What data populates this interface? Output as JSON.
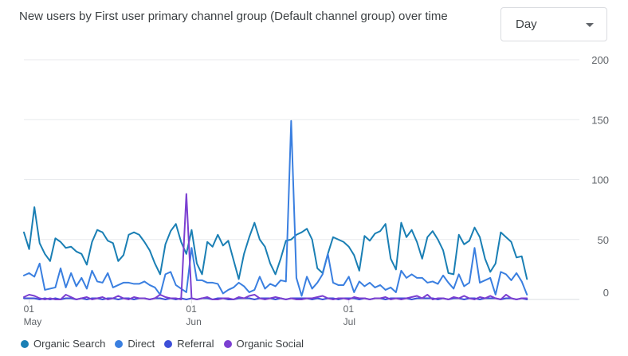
{
  "header": {
    "title": "New users by First user primary channel group (Default channel group) over time"
  },
  "granularity": {
    "selected": "Day"
  },
  "icons": {
    "dropdown_caret": "caret-down-icon"
  },
  "chart_data": {
    "type": "line",
    "title": "New users by First user primary channel group (Default channel group) over time",
    "ylim": [
      0,
      200
    ],
    "yticks": [
      0,
      50,
      100,
      150,
      200
    ],
    "xlim": [
      0,
      106
    ],
    "x_tick_labels": [
      {
        "x": 1,
        "day": "01",
        "month": "May"
      },
      {
        "x": 32,
        "day": "01",
        "month": "Jun"
      },
      {
        "x": 62,
        "day": "01",
        "month": "Jul"
      }
    ],
    "grid": true,
    "legend": "bottom-left",
    "series": [
      {
        "name": "Organic Search",
        "color": "#1a7fb4",
        "values": [
          56,
          42,
          77,
          47,
          38,
          32,
          51,
          48,
          43,
          44,
          40,
          38,
          29,
          48,
          58,
          56,
          49,
          47,
          32,
          37,
          54,
          56,
          54,
          48,
          41,
          30,
          21,
          46,
          57,
          63,
          48,
          38,
          58,
          30,
          21,
          48,
          44,
          54,
          45,
          49,
          33,
          17,
          38,
          52,
          64,
          50,
          44,
          30,
          21,
          34,
          49,
          50,
          54,
          56,
          59,
          50,
          26,
          22,
          38,
          52,
          50,
          48,
          44,
          37,
          24,
          53,
          49,
          55,
          57,
          63,
          34,
          25,
          64,
          52,
          58,
          48,
          34,
          52,
          57,
          50,
          41,
          22,
          21,
          54,
          46,
          49,
          60,
          52,
          34,
          23,
          30,
          56,
          52,
          48,
          35,
          36,
          17
        ]
      },
      {
        "name": "Direct",
        "color": "#3a7fe0",
        "values": [
          20,
          22,
          19,
          30,
          8,
          9,
          10,
          26,
          10,
          22,
          11,
          18,
          9,
          24,
          15,
          14,
          22,
          10,
          12,
          14,
          14,
          13,
          13,
          15,
          12,
          10,
          4,
          21,
          23,
          12,
          9,
          6,
          43,
          16,
          16,
          14,
          14,
          13,
          5,
          8,
          10,
          14,
          11,
          6,
          8,
          19,
          9,
          13,
          11,
          16,
          15,
          149,
          18,
          3,
          19,
          9,
          14,
          21,
          38,
          14,
          12,
          12,
          19,
          6,
          15,
          11,
          14,
          10,
          12,
          8,
          10,
          6,
          24,
          18,
          21,
          18,
          18,
          14,
          15,
          13,
          20,
          14,
          9,
          21,
          11,
          14,
          43,
          14,
          16,
          18,
          4,
          23,
          21,
          16,
          22,
          15,
          4
        ]
      },
      {
        "name": "Referral",
        "color": "#3d4fd8",
        "values": [
          1,
          1,
          1,
          0,
          1,
          0,
          1,
          0,
          1,
          1,
          0,
          1,
          0,
          1,
          1,
          0,
          1,
          1,
          0,
          1,
          1,
          0,
          1,
          1,
          0,
          1,
          1,
          0,
          1,
          0,
          1,
          0,
          1,
          0,
          1,
          1,
          0,
          1,
          1,
          0,
          0,
          1,
          1,
          1,
          0,
          1,
          1,
          1,
          0,
          1,
          0,
          1,
          1,
          1,
          1,
          0,
          1,
          0,
          1,
          1,
          0,
          1,
          1,
          1,
          0,
          1,
          0,
          1,
          1,
          0,
          1,
          1,
          1,
          1,
          0,
          1,
          1,
          1,
          1,
          0,
          1,
          0,
          1,
          1,
          0,
          1,
          1,
          0,
          1,
          1,
          1,
          0,
          1,
          1,
          0,
          1,
          0
        ]
      },
      {
        "name": "Organic Social",
        "color": "#7b3fd1",
        "values": [
          2,
          4,
          3,
          1,
          0,
          1,
          0,
          0,
          4,
          2,
          0,
          1,
          2,
          0,
          1,
          2,
          0,
          1,
          3,
          1,
          0,
          2,
          1,
          1,
          0,
          1,
          4,
          2,
          1,
          1,
          0,
          88,
          1,
          0,
          1,
          2,
          0,
          0,
          1,
          1,
          0,
          2,
          1,
          3,
          4,
          1,
          0,
          1,
          2,
          1,
          0,
          1,
          0,
          0,
          1,
          1,
          2,
          3,
          1,
          0,
          1,
          1,
          0,
          2,
          1,
          1,
          0,
          1,
          1,
          2,
          0,
          1,
          0,
          1,
          2,
          3,
          1,
          4,
          0,
          1,
          1,
          0,
          2,
          1,
          3,
          1,
          0,
          2,
          1,
          3,
          1,
          0,
          4,
          1,
          0,
          1,
          1
        ]
      }
    ]
  }
}
